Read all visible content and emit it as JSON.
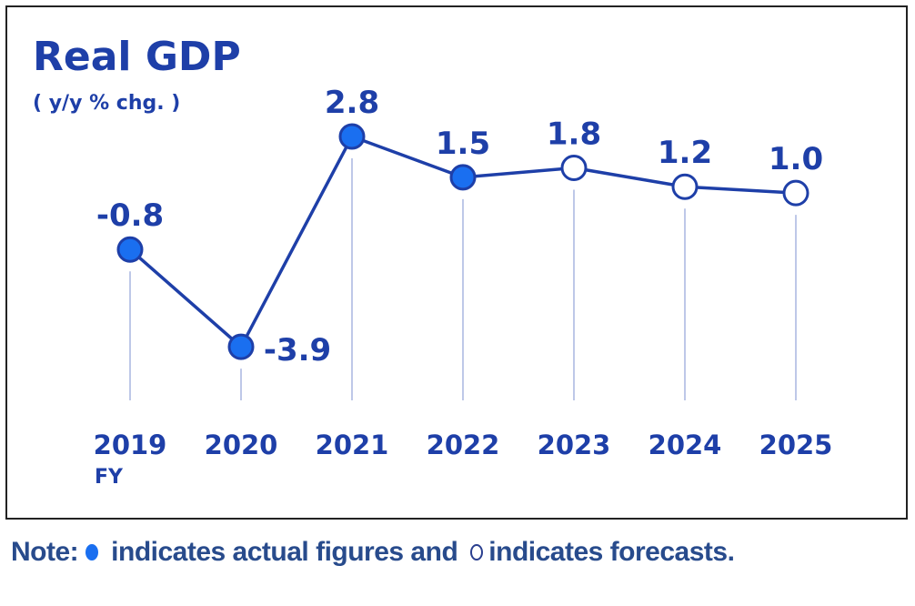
{
  "chart_data": {
    "type": "line",
    "title": "Real GDP",
    "subtitle": "( y/y % chg. )",
    "categories": [
      "2019",
      "2020",
      "2021",
      "2022",
      "2023",
      "2024",
      "2025"
    ],
    "x_prefix_label": "FY",
    "values": [
      -0.8,
      -3.9,
      2.8,
      1.5,
      1.8,
      1.2,
      1.0
    ],
    "data_labels": [
      "-0.8",
      "-3.9",
      "2.8",
      "1.5",
      "1.8",
      "1.2",
      "1.0"
    ],
    "point_kind": [
      "actual",
      "actual",
      "actual",
      "actual",
      "forecast",
      "forecast",
      "forecast"
    ],
    "grid": false,
    "colors": {
      "text": "#1e3fa8",
      "line": "#1e3fa8",
      "actual_fill": "#1a6ff0",
      "forecast_fill": "#ffffff",
      "guide": "#a9b6e0"
    }
  },
  "note": {
    "prefix": "Note:",
    "actual_text": "indicates actual figures and",
    "forecast_text": "indicates forecasts."
  }
}
